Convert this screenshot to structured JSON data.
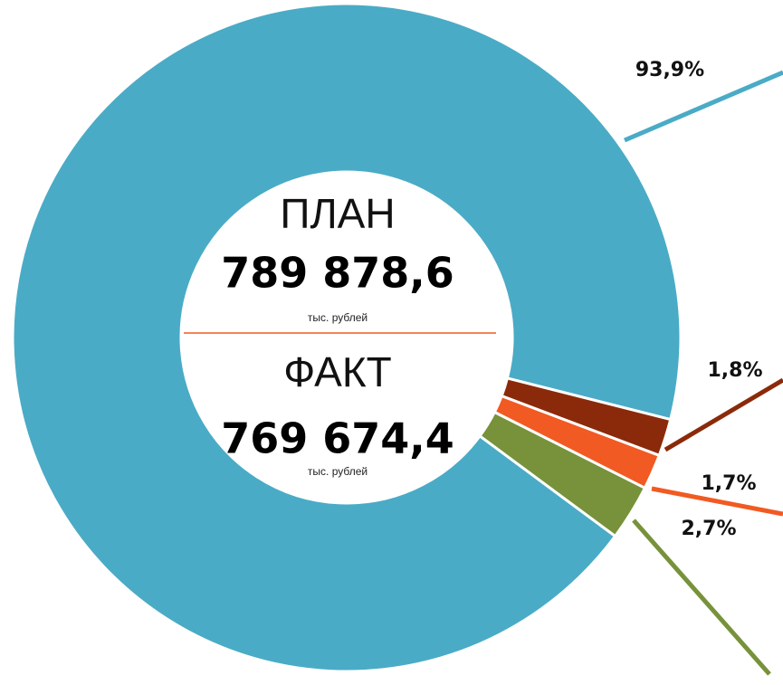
{
  "chart_data": {
    "type": "pie",
    "values": [
      93.9,
      1.8,
      1.7,
      2.7
    ],
    "value_labels": [
      "93,9%",
      "1,8%",
      "1,7%",
      "2,7%"
    ],
    "colors": [
      "#4aabc6",
      "#8b2a0a",
      "#f15a22",
      "#77923a"
    ],
    "center": {
      "plan_label": "ПЛАН",
      "plan_value": "789 878,6",
      "plan_unit": "тыс. рублей",
      "fact_label": "ФАКТ",
      "fact_value": "769 674,4",
      "fact_unit": "тыс. рублей"
    }
  }
}
